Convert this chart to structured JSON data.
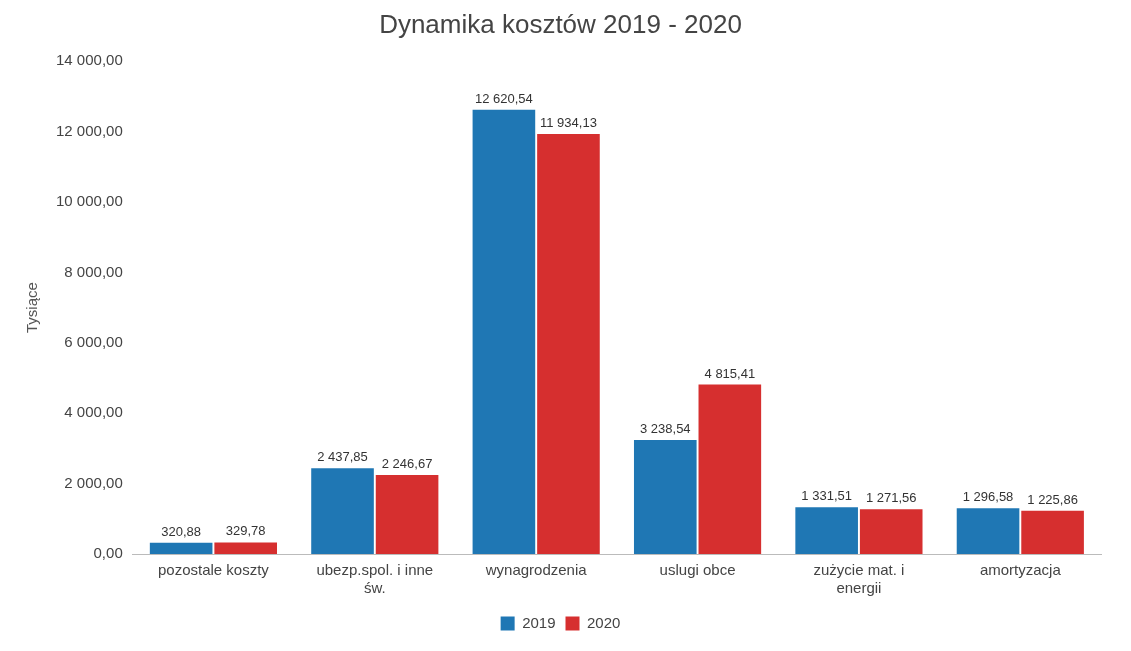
{
  "chart_data": {
    "type": "bar",
    "title": "Dynamika kosztów 2019 - 2020",
    "ylabel": "Tysiące",
    "categories": [
      "pozostale koszty",
      "ubezp.spol. i inne św.",
      "wynagrodzenia",
      "uslugi obce",
      "zużycie mat. i energii",
      "amortyzacja"
    ],
    "series": [
      {
        "name": "2019",
        "color": "#1f77b4",
        "values": [
          320.88,
          2437.85,
          12620.54,
          3238.54,
          1331.51,
          1296.58
        ],
        "value_labels": [
          "320,88",
          "2 437,85",
          "12 620,54",
          "3 238,54",
          "1 331,51",
          "1 296,58"
        ]
      },
      {
        "name": "2020",
        "color": "#d62f2f",
        "values": [
          329.78,
          2246.67,
          11934.13,
          4815.41,
          1271.56,
          1225.86
        ],
        "value_labels": [
          "329,78",
          "2 246,67",
          "11 934,13",
          "4 815,41",
          "1 271,56",
          "1 225,86"
        ]
      }
    ],
    "ylim": [
      0,
      14000
    ],
    "yticks": [
      {
        "value": 0,
        "label": "0,00"
      },
      {
        "value": 2000,
        "label": "2 000,00"
      },
      {
        "value": 4000,
        "label": "4 000,00"
      },
      {
        "value": 6000,
        "label": "6 000,00"
      },
      {
        "value": 8000,
        "label": "8 000,00"
      },
      {
        "value": 10000,
        "label": "10 000,00"
      },
      {
        "value": 12000,
        "label": "12 000,00"
      },
      {
        "value": 14000,
        "label": "14 000,00"
      }
    ],
    "grid": false,
    "legend": "bottom"
  }
}
